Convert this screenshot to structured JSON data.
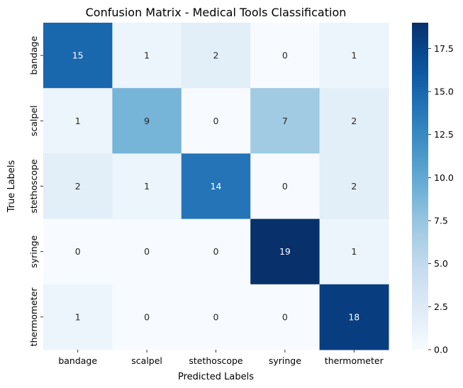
{
  "chart_data": {
    "type": "heatmap",
    "title": "Confusion Matrix - Medical Tools Classification",
    "xlabel": "Predicted Labels",
    "ylabel": "True Labels",
    "x_categories": [
      "bandage",
      "scalpel",
      "stethoscope",
      "syringe",
      "thermometer"
    ],
    "y_categories": [
      "bandage",
      "scalpel",
      "stethoscope",
      "syringe",
      "thermometer"
    ],
    "matrix": [
      [
        15,
        1,
        2,
        0,
        1
      ],
      [
        1,
        9,
        0,
        7,
        2
      ],
      [
        2,
        1,
        14,
        0,
        2
      ],
      [
        0,
        0,
        0,
        19,
        1
      ],
      [
        1,
        0,
        0,
        0,
        18
      ]
    ],
    "colormap": "Blues",
    "value_range": [
      0,
      19
    ],
    "colorbar_ticks": [
      "0.0",
      "2.5",
      "5.0",
      "7.5",
      "10.0",
      "12.5",
      "15.0",
      "17.5"
    ],
    "annotations": true
  }
}
